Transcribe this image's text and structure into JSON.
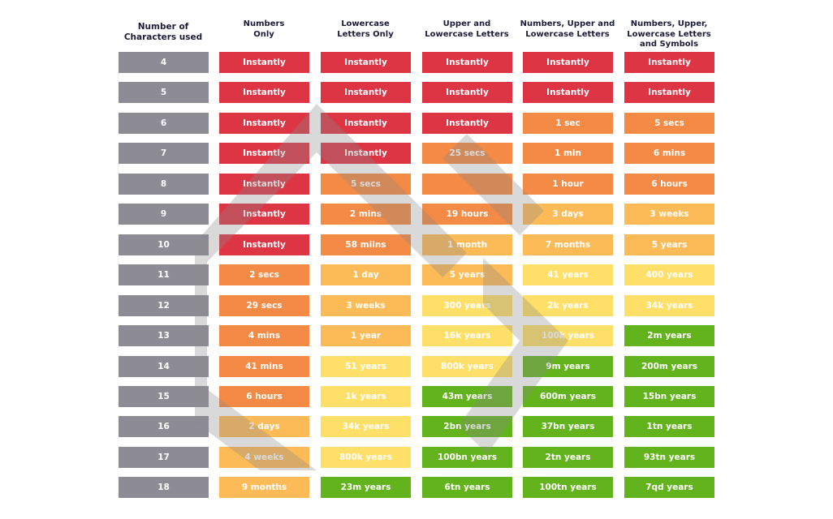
{
  "chart_data": {
    "type": "table",
    "title": "",
    "columns": [
      "Number of Characters used",
      "Numbers Only",
      "Lowercase Letters Only",
      "Upper and Lowercase Letters",
      "Numbers, Upper and Lowercase Letters",
      "Numbers, Upper, Lowercase Letters and Symbols"
    ],
    "header_lines": [
      [
        "Number of",
        "Characters used"
      ],
      [
        "Numbers",
        "Only"
      ],
      [
        "Lowercase",
        "Letters Only"
      ],
      [
        "Upper and",
        "Lowercase Letters"
      ],
      [
        "Numbers, Upper and",
        "Lowercase Letters"
      ],
      [
        "Numbers, Upper,",
        "Lowercase Letters",
        "and Symbols"
      ]
    ],
    "rows": [
      {
        "chars": "4",
        "values": [
          "Instantly",
          "Instantly",
          "Instantly",
          "Instantly",
          "Instantly"
        ],
        "levels": [
          "red",
          "red",
          "red",
          "red",
          "red"
        ]
      },
      {
        "chars": "5",
        "values": [
          "Instantly",
          "Instantly",
          "Instantly",
          "Instantly",
          "Instantly"
        ],
        "levels": [
          "red",
          "red",
          "red",
          "red",
          "red"
        ]
      },
      {
        "chars": "6",
        "values": [
          "Instantly",
          "Instantly",
          "Instantly",
          "1 sec",
          "5 secs"
        ],
        "levels": [
          "red",
          "red",
          "red",
          "orange",
          "orange"
        ]
      },
      {
        "chars": "7",
        "values": [
          "Instantly",
          "Instantly",
          "25 secs",
          "1 min",
          "6 mins"
        ],
        "levels": [
          "red",
          "red",
          "orange",
          "orange",
          "orange"
        ]
      },
      {
        "chars": "8",
        "values": [
          "Instantly",
          "5 secs",
          "",
          "1 hour",
          "6 hours"
        ],
        "levels": [
          "red",
          "orange",
          "orange",
          "orange",
          "orange"
        ]
      },
      {
        "chars": "9",
        "values": [
          "Instantly",
          "2 mins",
          "19 hours",
          "3 days",
          "3 weeks"
        ],
        "levels": [
          "red",
          "orange",
          "orange",
          "amber",
          "amber"
        ]
      },
      {
        "chars": "10",
        "values": [
          "Instantly",
          "58 miins",
          "1 month",
          "7 months",
          "5 years"
        ],
        "levels": [
          "red",
          "orange",
          "amber",
          "amber",
          "amber"
        ]
      },
      {
        "chars": "11",
        "values": [
          "2 secs",
          "1 day",
          "5 years",
          "41 years",
          "400 years"
        ],
        "levels": [
          "orange",
          "amber",
          "amber",
          "yellow",
          "yellow"
        ]
      },
      {
        "chars": "12",
        "values": [
          "29 secs",
          "3 weeks",
          "300 years",
          "2k years",
          "34k years"
        ],
        "levels": [
          "orange",
          "amber",
          "yellow",
          "yellow",
          "yellow"
        ]
      },
      {
        "chars": "13",
        "values": [
          "4 mins",
          "1 year",
          "16k years",
          "100k years",
          "2m years"
        ],
        "levels": [
          "orange",
          "amber",
          "yellow",
          "yellow",
          "green"
        ]
      },
      {
        "chars": "14",
        "values": [
          "41 mins",
          "51 years",
          "800k years",
          "9m years",
          "200m years"
        ],
        "levels": [
          "orange",
          "yellow",
          "yellow",
          "green",
          "green"
        ]
      },
      {
        "chars": "15",
        "values": [
          "6 hours",
          "1k years",
          "43m years",
          "600m years",
          "15bn years"
        ],
        "levels": [
          "orange",
          "yellow",
          "green",
          "green",
          "green"
        ]
      },
      {
        "chars": "16",
        "values": [
          "2 days",
          "34k years",
          "2bn years",
          "37bn years",
          "1tn years"
        ],
        "levels": [
          "amber",
          "yellow",
          "green",
          "green",
          "green"
        ]
      },
      {
        "chars": "17",
        "values": [
          "4 weeks",
          "800k years",
          "100bn years",
          "2tn years",
          "93tn years"
        ],
        "levels": [
          "amber",
          "yellow",
          "green",
          "green",
          "green"
        ]
      },
      {
        "chars": "18",
        "values": [
          "9 months",
          "23m years",
          "6tn years",
          "100tn years",
          "7qd years"
        ],
        "levels": [
          "amber",
          "green",
          "green",
          "green",
          "green"
        ]
      }
    ]
  },
  "colors": {
    "red": "#de3545",
    "orange": "#f38a45",
    "amber": "#fdbb57",
    "yellow": "#fedf67",
    "green": "#63b31c",
    "grey": "#8d8c95",
    "header_text": "#1c1c3a",
    "watermark": "#9a9a9a"
  }
}
